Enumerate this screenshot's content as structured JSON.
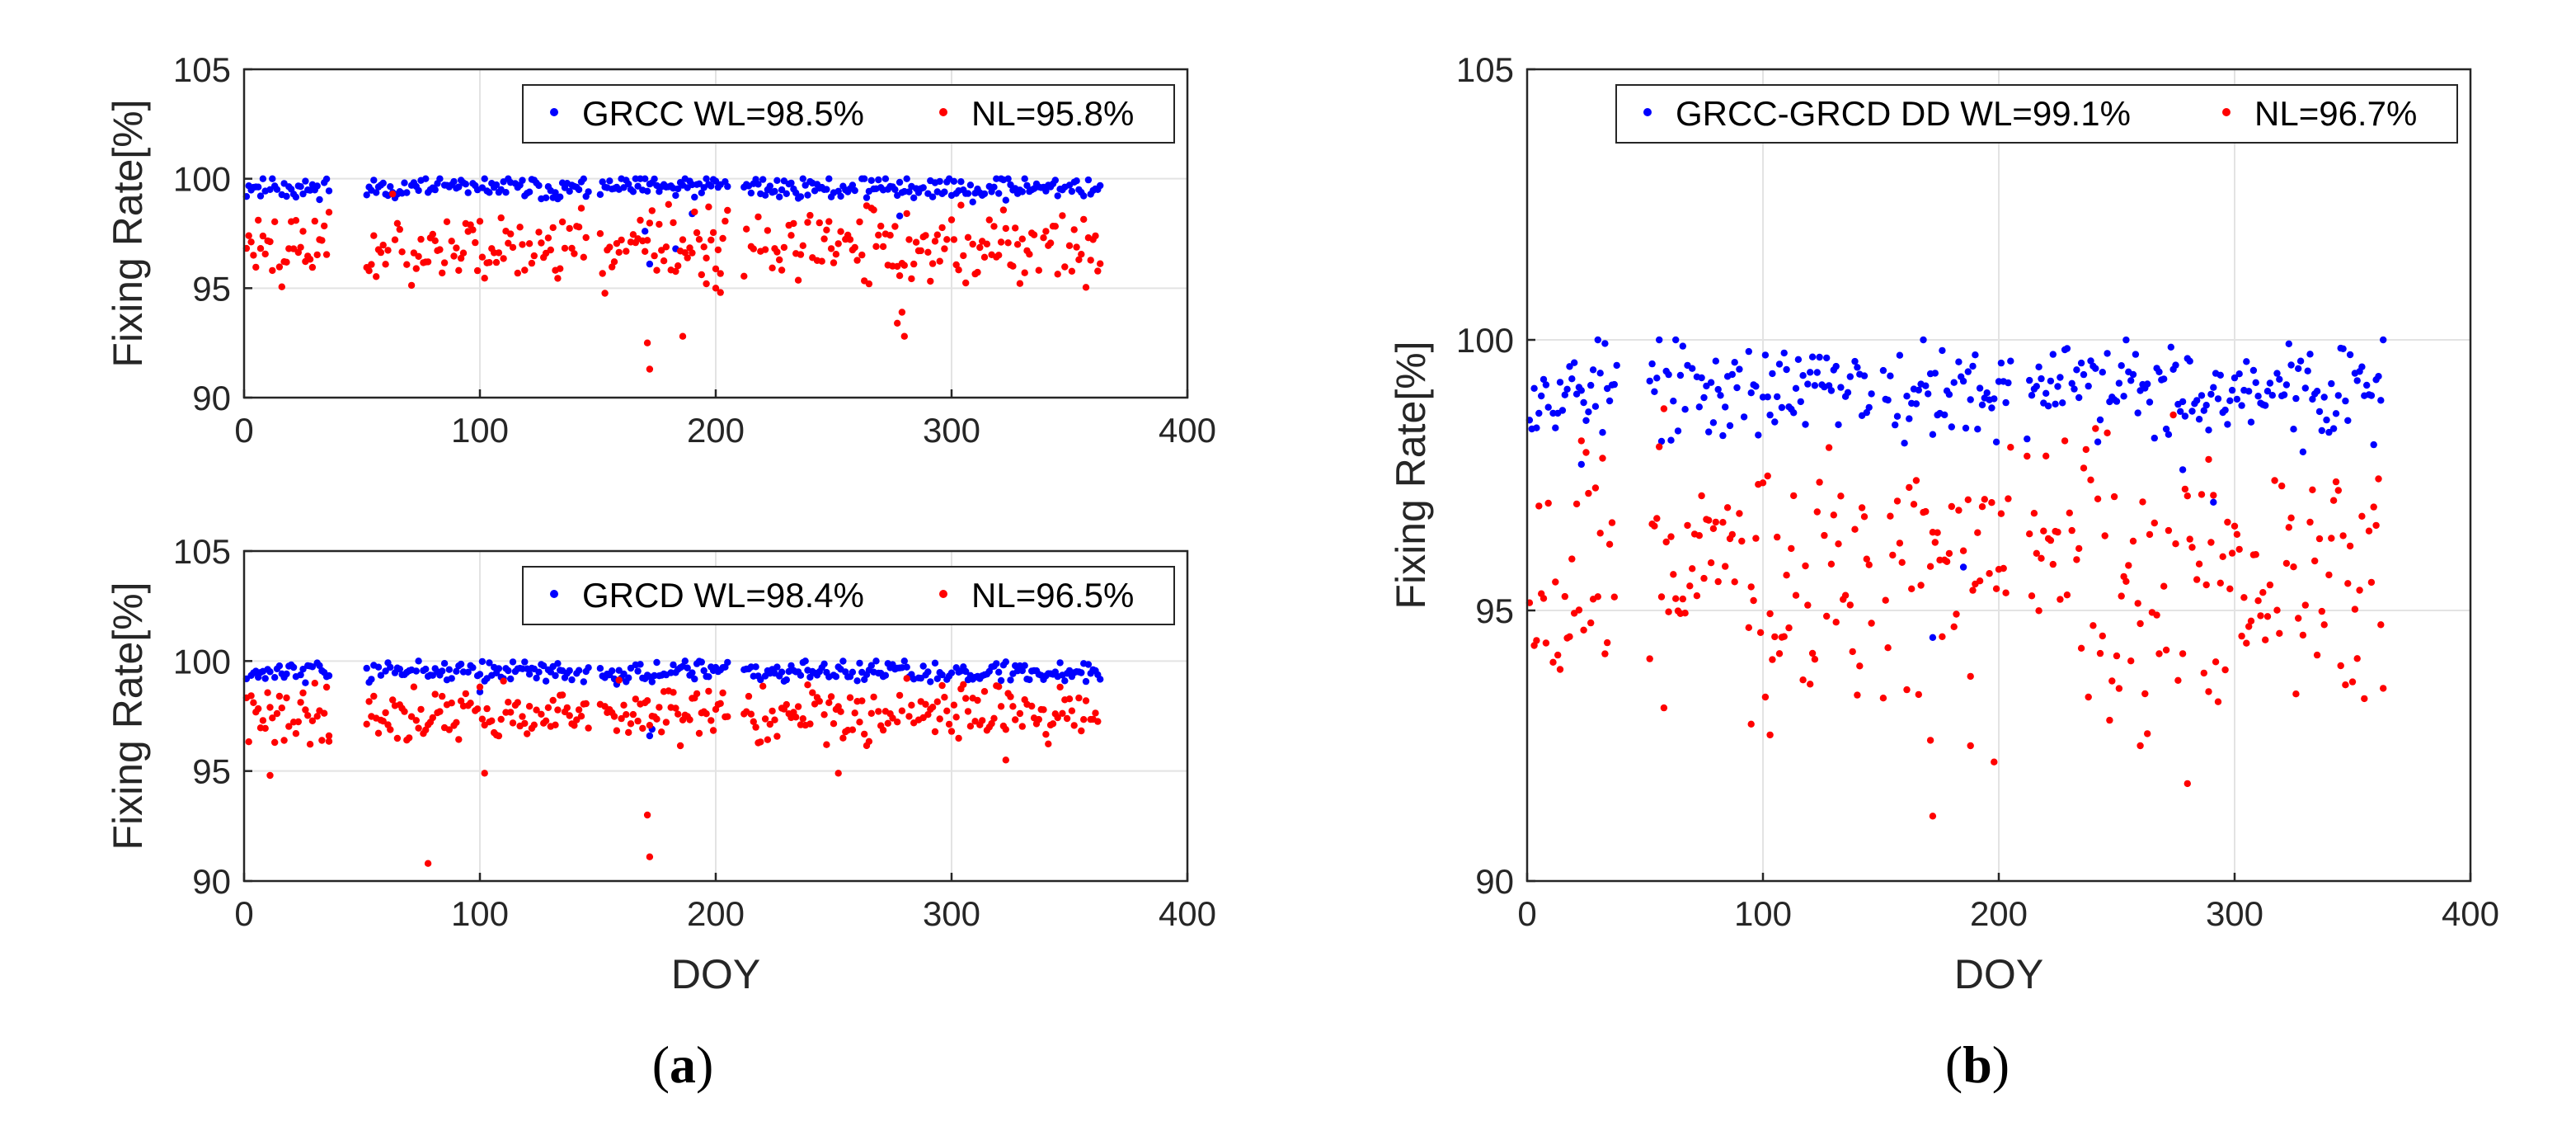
{
  "figure": {
    "panel_a_label": {
      "open": "(",
      "letter": "a",
      "close": ")"
    },
    "panel_b_label": {
      "open": "(",
      "letter": "b",
      "close": ")"
    }
  },
  "colors": {
    "wl": "#0000ff",
    "nl": "#ff0000",
    "axis": "#262626",
    "grid": "#e3e3e3"
  },
  "chart_data": [
    {
      "id": "a-top",
      "type": "scatter",
      "title": "",
      "xlabel": "",
      "ylabel": "Fixing Rate[%]",
      "xlim": [
        0,
        400
      ],
      "ylim": [
        90,
        105
      ],
      "xticks": [
        0,
        100,
        200,
        300,
        400
      ],
      "yticks": [
        90,
        95,
        100,
        105
      ],
      "grid": true,
      "legend_position": "top-right",
      "series": [
        {
          "name": "GRCC WL=98.5%",
          "color": "#0000ff",
          "segments": [
            [
              1,
              36
            ],
            [
              52,
              146
            ],
            [
              151,
              205
            ],
            [
              212,
              363
            ]
          ],
          "base": 99.6,
          "spread": 0.45,
          "seed": 11,
          "outliers": [
            [
              172,
              96.1
            ],
            [
              183,
              96.8
            ],
            [
              190,
              98.4
            ],
            [
              278,
              98.3
            ],
            [
              170,
              97.6
            ]
          ]
        },
        {
          "name": "NL=95.8%",
          "color": "#ff0000",
          "segments": [
            [
              1,
              36
            ],
            [
              52,
              146
            ],
            [
              151,
              205
            ],
            [
              212,
              363
            ]
          ],
          "base": 96.9,
          "spread": 1.5,
          "seed": 23,
          "outliers": [
            [
              171,
              92.5
            ],
            [
              172,
              91.3
            ],
            [
              186,
              92.8
            ],
            [
              279,
              93.9
            ],
            [
              280,
              92.8
            ],
            [
              277,
              93.4
            ],
            [
              200,
              95.0
            ],
            [
              202,
              94.8
            ],
            [
              196,
              95.2
            ]
          ]
        }
      ]
    },
    {
      "id": "a-bottom",
      "type": "scatter",
      "title": "",
      "xlabel": "DOY",
      "ylabel": "Fixing Rate[%]",
      "xlim": [
        0,
        400
      ],
      "ylim": [
        90,
        105
      ],
      "xticks": [
        0,
        100,
        200,
        300,
        400
      ],
      "yticks": [
        90,
        95,
        100,
        105
      ],
      "grid": true,
      "legend_position": "top-right",
      "series": [
        {
          "name": "GRCD WL=98.4%",
          "color": "#0000ff",
          "segments": [
            [
              1,
              36
            ],
            [
              52,
              146
            ],
            [
              151,
              205
            ],
            [
              212,
              363
            ]
          ],
          "base": 99.5,
          "spread": 0.4,
          "seed": 37,
          "outliers": [
            [
              172,
              96.6
            ],
            [
              173,
              96.9
            ],
            [
              100,
              98.6
            ]
          ]
        },
        {
          "name": "NL=96.5%",
          "color": "#ff0000",
          "segments": [
            [
              1,
              36
            ],
            [
              52,
              146
            ],
            [
              151,
              205
            ],
            [
              212,
              363
            ]
          ],
          "base": 97.6,
          "spread": 1.1,
          "seed": 41,
          "outliers": [
            [
              11,
              94.8
            ],
            [
              78,
              90.8
            ],
            [
              102,
              94.9
            ],
            [
              171,
              93.0
            ],
            [
              172,
              91.1
            ],
            [
              252,
              94.9
            ],
            [
              323,
              95.5
            ],
            [
              36,
              96.6
            ]
          ]
        }
      ]
    },
    {
      "id": "b",
      "type": "scatter",
      "title": "",
      "xlabel": "DOY",
      "ylabel": "Fixing Rate[%]",
      "xlim": [
        0,
        400
      ],
      "ylim": [
        90,
        105
      ],
      "xticks": [
        0,
        100,
        200,
        300,
        400
      ],
      "yticks": [
        90,
        95,
        100,
        105
      ],
      "grid": true,
      "legend_position": "top",
      "series": [
        {
          "name": "GRCC-GRCD DD WL=99.1%",
          "color": "#0000ff",
          "segments": [
            [
              1,
              38
            ],
            [
              52,
              146
            ],
            [
              151,
              205
            ],
            [
              212,
              363
            ]
          ],
          "base": 99.1,
          "spread": 0.75,
          "seed": 53,
          "outliers": [
            [
              172,
              94.5
            ],
            [
              185,
              95.8
            ],
            [
              291,
              97.0
            ],
            [
              278,
              97.6
            ],
            [
              23,
              97.7
            ]
          ]
        },
        {
          "name": "NL=96.7%",
          "color": "#ff0000",
          "segments": [
            [
              1,
              38
            ],
            [
              52,
              146
            ],
            [
              151,
              205
            ],
            [
              212,
              363
            ]
          ],
          "base": 95.8,
          "spread": 1.9,
          "seed": 67,
          "outliers": [
            [
              172,
              91.2
            ],
            [
              171,
              92.6
            ],
            [
              198,
              92.2
            ],
            [
              188,
              92.5
            ],
            [
              280,
              91.8
            ],
            [
              103,
              92.7
            ],
            [
              95,
              92.9
            ],
            [
              58,
              93.2
            ],
            [
              260,
              92.5
            ],
            [
              238,
              93.4
            ],
            [
              289,
              93.5
            ]
          ]
        }
      ]
    }
  ]
}
